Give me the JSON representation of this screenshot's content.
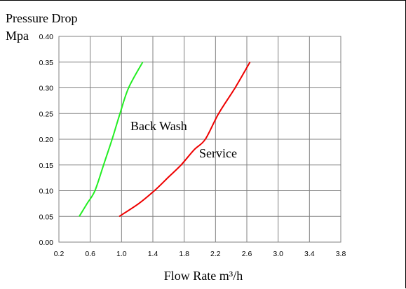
{
  "chart_data": {
    "type": "line",
    "title": "Pressure Drop",
    "ylabel": "Mpa",
    "xlabel": "Flow Rate m³/h",
    "xlim": [
      0.2,
      3.8
    ],
    "ylim": [
      0,
      0.4
    ],
    "x_ticks": [
      "0.2",
      "0.6",
      "1.0",
      "1.4",
      "1.8",
      "2.2",
      "2.6",
      "3.0",
      "3.4",
      "3.8"
    ],
    "y_ticks": [
      "0.00",
      "0.05",
      "0.10",
      "0.15",
      "0.20",
      "0.25",
      "0.30",
      "0.35",
      "0.40"
    ],
    "grid": true,
    "series": [
      {
        "name": "Back Wash",
        "color": "#22ee22",
        "points": [
          [
            0.46,
            0.05
          ],
          [
            0.56,
            0.075
          ],
          [
            0.66,
            0.1
          ],
          [
            0.77,
            0.15
          ],
          [
            0.88,
            0.2
          ],
          [
            0.98,
            0.25
          ],
          [
            1.09,
            0.3
          ],
          [
            1.27,
            0.35
          ]
        ]
      },
      {
        "name": "Service",
        "color": "#ee0000",
        "points": [
          [
            0.97,
            0.05
          ],
          [
            1.22,
            0.075
          ],
          [
            1.42,
            0.1
          ],
          [
            1.59,
            0.125
          ],
          [
            1.76,
            0.15
          ],
          [
            1.93,
            0.18
          ],
          [
            2.07,
            0.2
          ],
          [
            2.24,
            0.25
          ],
          [
            2.45,
            0.3
          ],
          [
            2.64,
            0.35
          ]
        ]
      }
    ]
  }
}
